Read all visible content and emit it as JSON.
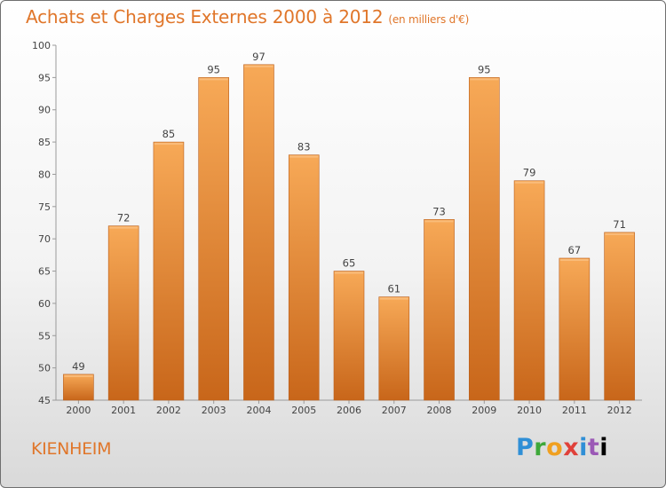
{
  "chart_data": {
    "type": "bar",
    "title": "Achats et Charges Externes 2000 à 2012",
    "subtitle": "(en milliers d'€)",
    "categories": [
      "2000",
      "2001",
      "2002",
      "2003",
      "2004",
      "2005",
      "2006",
      "2007",
      "2008",
      "2009",
      "2010",
      "2011",
      "2012"
    ],
    "values": [
      49,
      72,
      85,
      95,
      97,
      83,
      65,
      61,
      73,
      95,
      79,
      67,
      71
    ],
    "ylim": [
      45,
      100
    ],
    "yticks": [
      45,
      50,
      55,
      60,
      65,
      70,
      75,
      80,
      85,
      90,
      95,
      100
    ],
    "xlabel": "",
    "ylabel": "",
    "grid": false,
    "colors": {
      "bar_top": "#f7a957",
      "bar_bottom": "#c8661a",
      "bar_edge": "#b95e1c",
      "title": "#e0762a"
    }
  },
  "footer": {
    "commune": "KIENHEIM",
    "brand": [
      "P",
      "r",
      "o",
      "x",
      "i",
      "t",
      "i"
    ]
  }
}
